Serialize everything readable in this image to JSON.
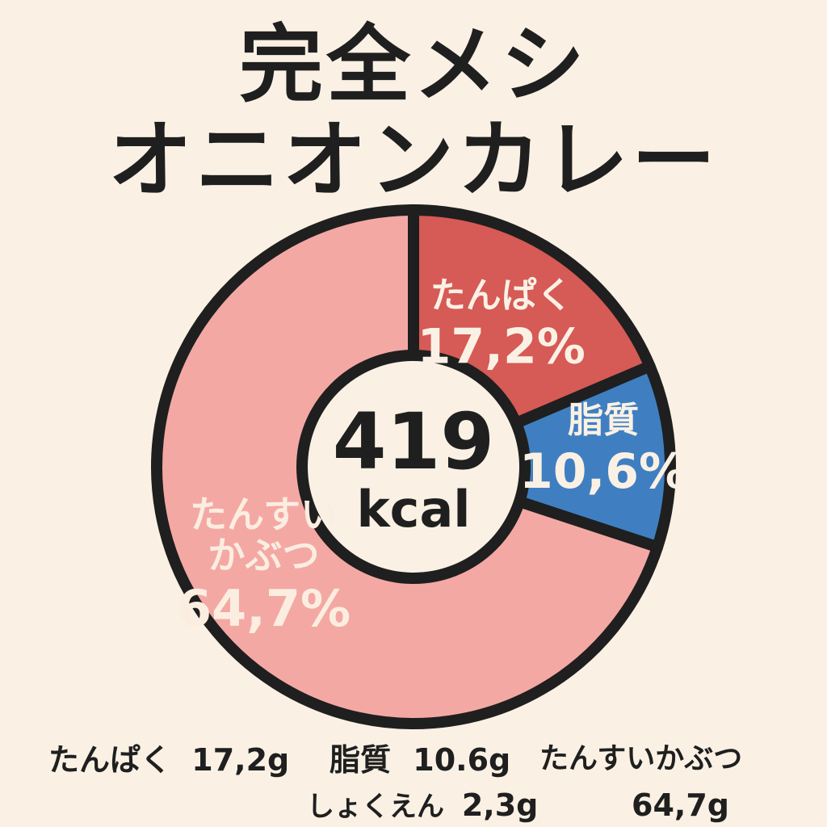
{
  "title": {
    "line1": "完全メシ",
    "line2": "オニオンカレー"
  },
  "chart_data": {
    "type": "pie",
    "center_value": "419",
    "center_unit": "kcal",
    "slices": [
      {
        "name": "たんぱく",
        "value": 17.2,
        "value_label": "17,2%",
        "color": "#d65a55",
        "text_color": "#faf1e4"
      },
      {
        "name": "脂質",
        "value": 10.6,
        "value_label": "10,6%",
        "color": "#3f7fc1",
        "text_color": "#faf1e4"
      },
      {
        "name": "たんすいかぶつ",
        "name_lines": [
          "たんすい",
          "かぶつ"
        ],
        "value": 64.7,
        "value_label": "64,7%",
        "color": "#f4a8a4",
        "text_color": "#fbeee0"
      }
    ]
  },
  "nutrients": {
    "protein": {
      "label": "たんぱく",
      "value": "17,2g"
    },
    "fat": {
      "label": "脂質",
      "value": "10.6g"
    },
    "carb": {
      "label": "たんすいかぶつ",
      "value": "64,7g"
    },
    "salt": {
      "label": "しょくえん",
      "value": "2,3g"
    }
  }
}
